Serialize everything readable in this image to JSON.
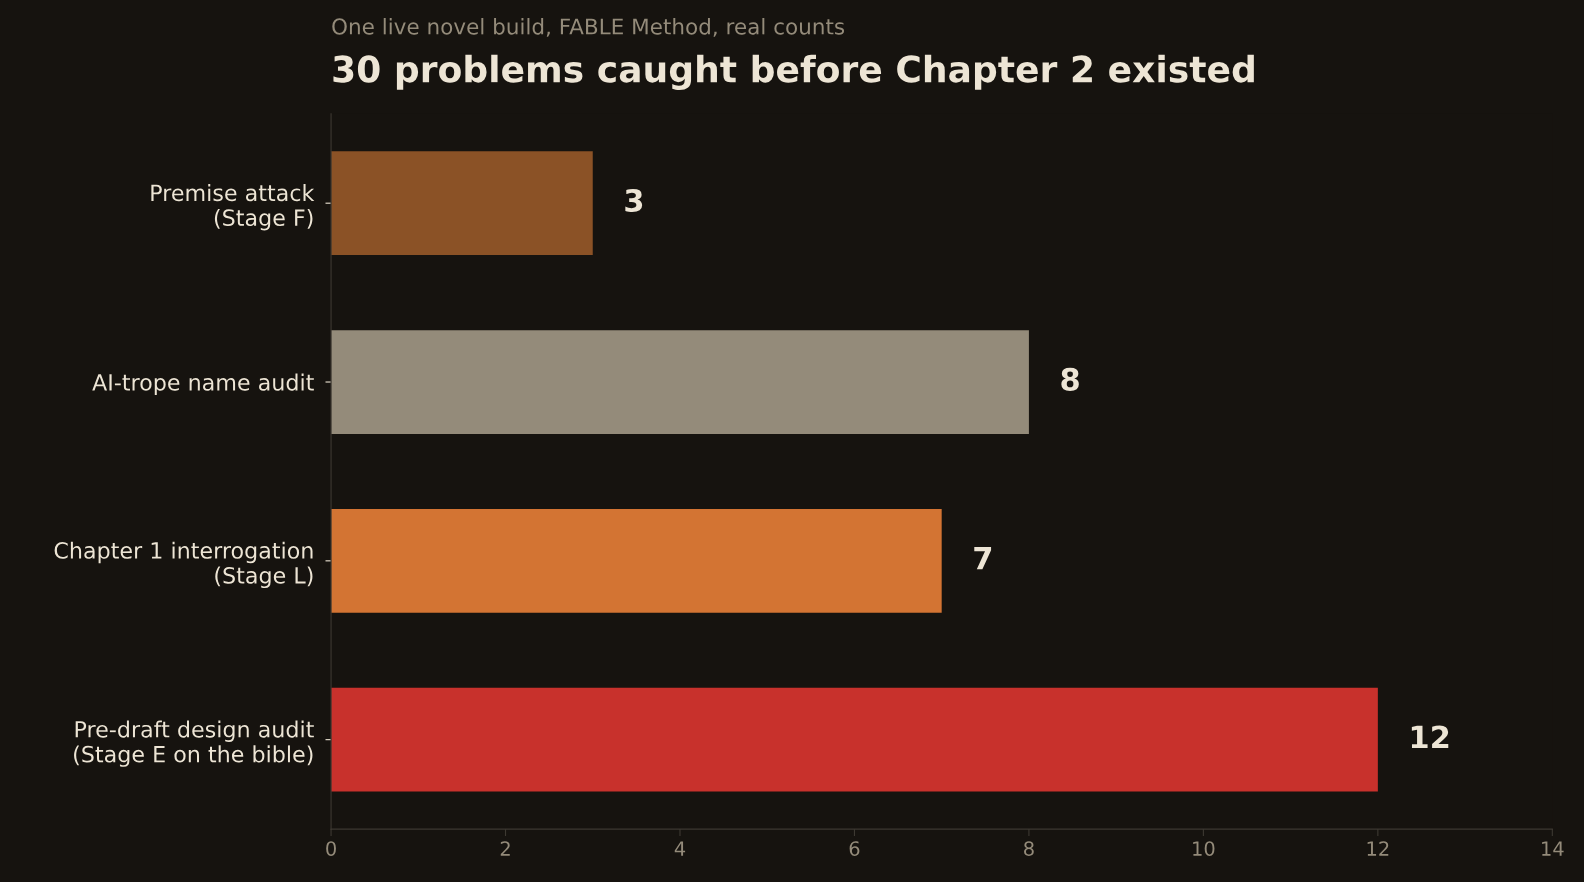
{
  "chart_data": {
    "type": "bar",
    "orientation": "horizontal",
    "title": "30 problems caught before Chapter 2 existed",
    "subtitle": "One live novel build, FABLE Method, real counts",
    "categories": [
      "Premise attack\n(Stage F)",
      "AI-trope name audit",
      "Chapter 1 interrogation\n(Stage L)",
      "Pre-draft design audit\n(Stage E on the bible)"
    ],
    "values": [
      3,
      8,
      7,
      12
    ],
    "colors": [
      "#8b5226",
      "#948b7a",
      "#d37433",
      "#c8312c"
    ],
    "xlim": [
      0,
      14
    ],
    "xticks": [
      0,
      2,
      4,
      6,
      8,
      10,
      12,
      14
    ],
    "data_labels": true,
    "grid": false,
    "legend": false
  }
}
